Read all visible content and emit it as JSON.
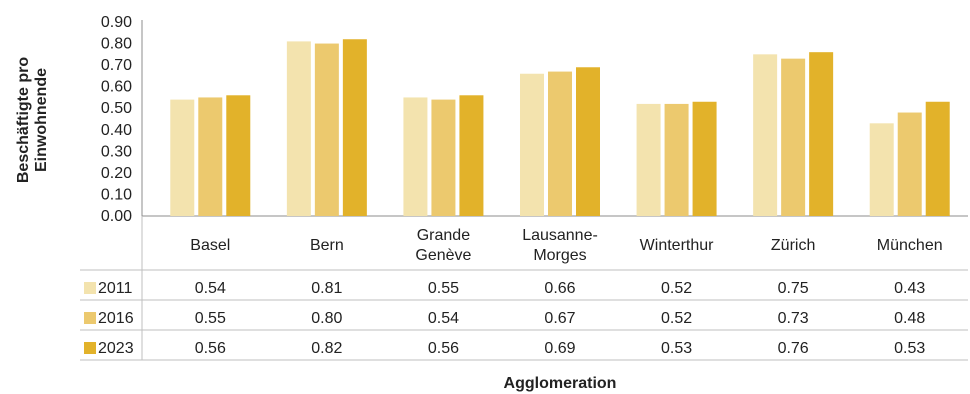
{
  "chart_data": {
    "type": "bar",
    "title": "",
    "xlabel": "Agglomeration",
    "ylabel_lines": [
      "Beschäftigte pro",
      "Einwohnende"
    ],
    "ylim": [
      0,
      0.9
    ],
    "yticks": [
      "0.00",
      "0.10",
      "0.20",
      "0.30",
      "0.40",
      "0.50",
      "0.60",
      "0.70",
      "0.80",
      "0.90"
    ],
    "categories": [
      [
        "Basel"
      ],
      [
        "Bern"
      ],
      [
        "Grande",
        "Genève"
      ],
      [
        "Lausanne-",
        "Morges"
      ],
      [
        "Winterthur"
      ],
      [
        "Zürich"
      ],
      [
        "München"
      ]
    ],
    "series": [
      {
        "name": "2011",
        "color": "#f3e3ae",
        "values": [
          0.54,
          0.81,
          0.55,
          0.66,
          0.52,
          0.75,
          0.43
        ],
        "labels": [
          "0.54",
          "0.81",
          "0.55",
          "0.66",
          "0.52",
          "0.75",
          "0.43"
        ]
      },
      {
        "name": "2016",
        "color": "#ecc96e",
        "values": [
          0.55,
          0.8,
          0.54,
          0.67,
          0.52,
          0.73,
          0.48
        ],
        "labels": [
          "0.55",
          "0.80",
          "0.54",
          "0.67",
          "0.52",
          "0.73",
          "0.48"
        ]
      },
      {
        "name": "2023",
        "color": "#e2b22a",
        "values": [
          0.56,
          0.82,
          0.56,
          0.69,
          0.53,
          0.76,
          0.53
        ],
        "labels": [
          "0.56",
          "0.82",
          "0.56",
          "0.69",
          "0.53",
          "0.76",
          "0.53"
        ]
      }
    ],
    "legend": "data-table-left",
    "grid": false
  }
}
